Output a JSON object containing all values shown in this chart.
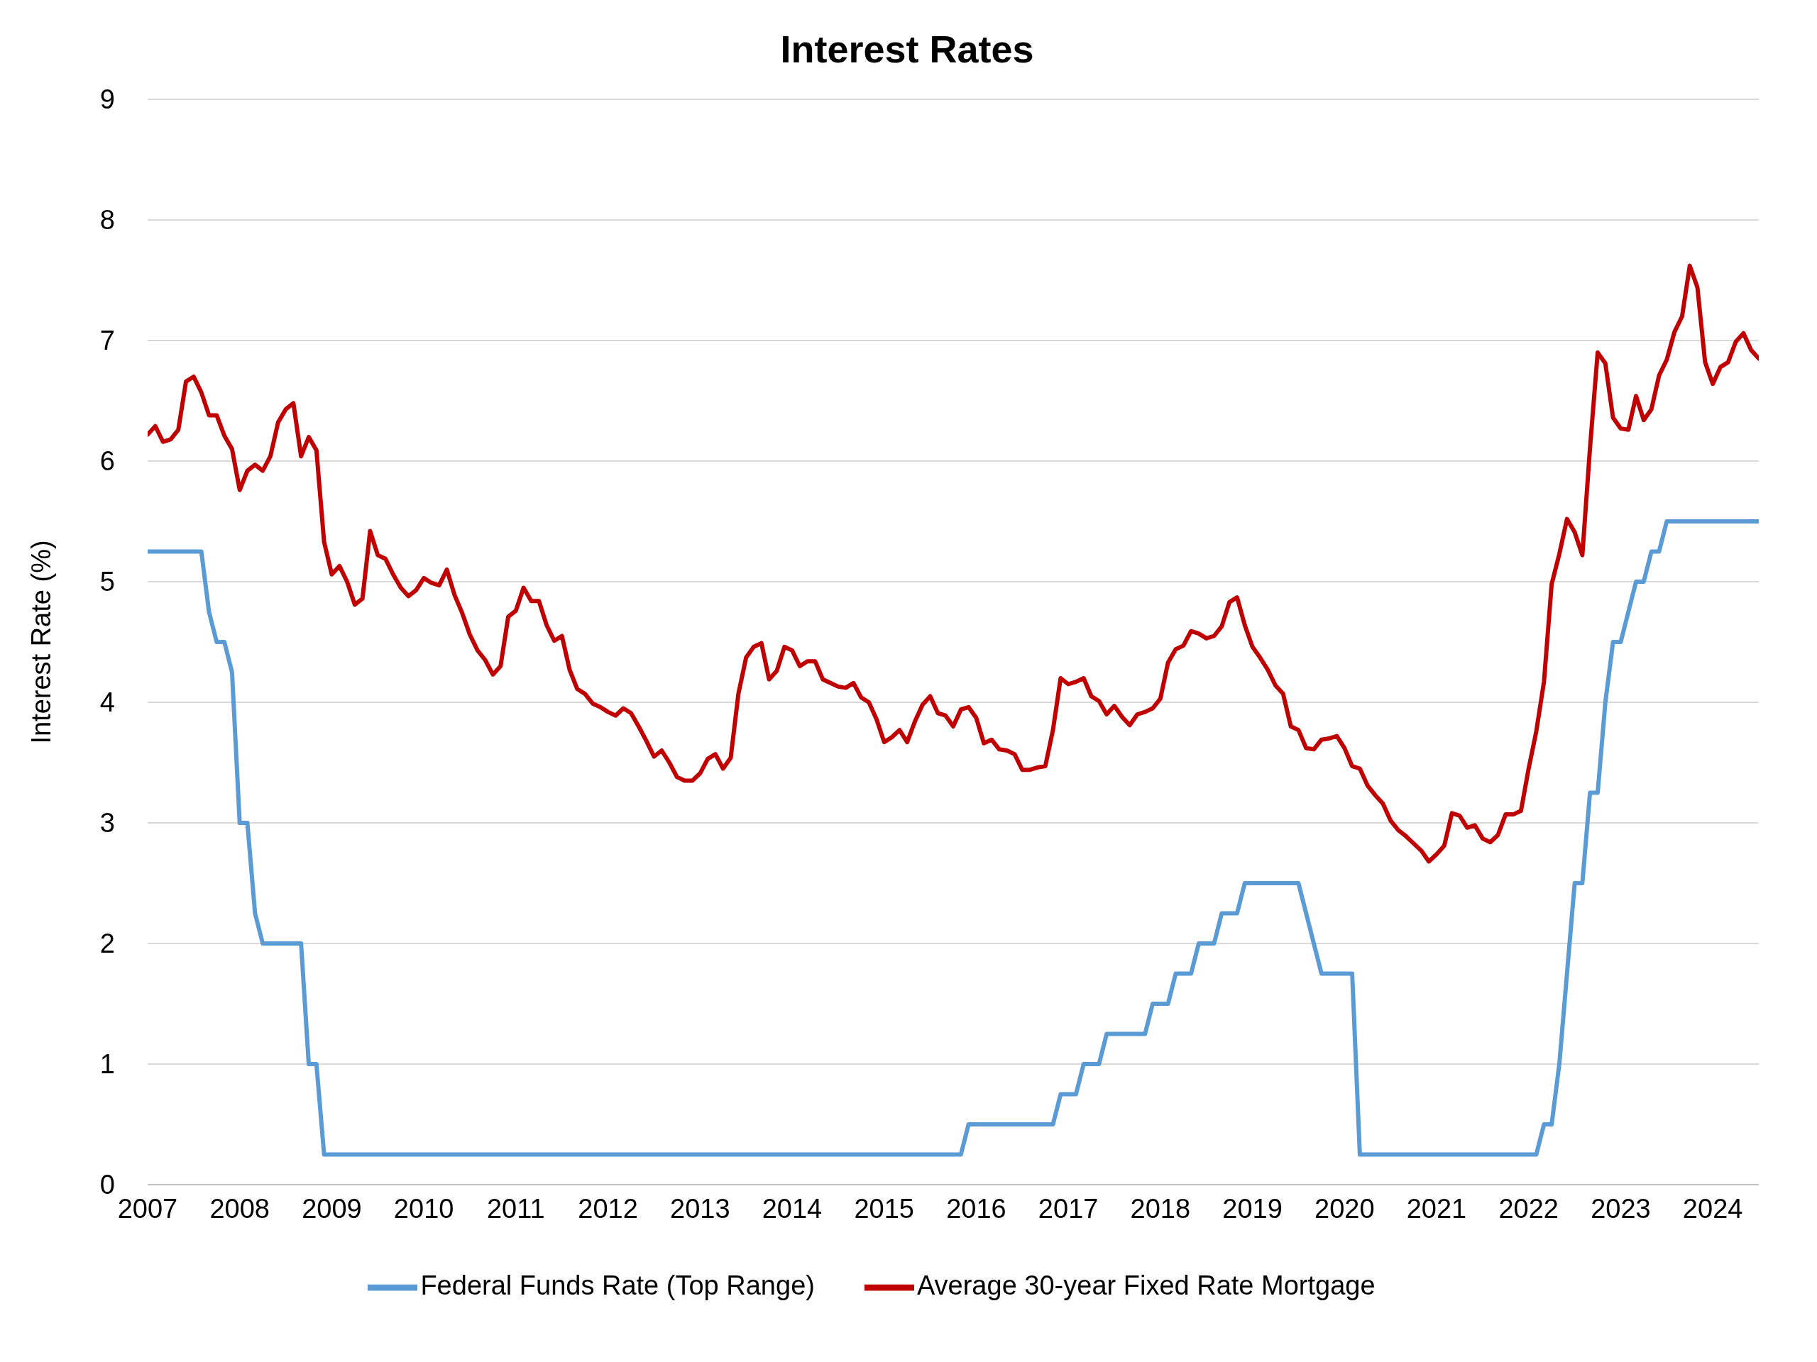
{
  "chart_data": {
    "type": "line",
    "title": "Interest Rates",
    "ylabel": "Interest Rate (%)",
    "x": [
      "2007-01",
      "2007-02",
      "2007-03",
      "2007-04",
      "2007-05",
      "2007-06",
      "2007-07",
      "2007-08",
      "2007-09",
      "2007-10",
      "2007-11",
      "2007-12",
      "2008-01",
      "2008-02",
      "2008-03",
      "2008-04",
      "2008-05",
      "2008-06",
      "2008-07",
      "2008-08",
      "2008-09",
      "2008-10",
      "2008-11",
      "2008-12",
      "2009-01",
      "2009-02",
      "2009-03",
      "2009-04",
      "2009-05",
      "2009-06",
      "2009-07",
      "2009-08",
      "2009-09",
      "2009-10",
      "2009-11",
      "2009-12",
      "2010-01",
      "2010-02",
      "2010-03",
      "2010-04",
      "2010-05",
      "2010-06",
      "2010-07",
      "2010-08",
      "2010-09",
      "2010-10",
      "2010-11",
      "2010-12",
      "2011-01",
      "2011-02",
      "2011-03",
      "2011-04",
      "2011-05",
      "2011-06",
      "2011-07",
      "2011-08",
      "2011-09",
      "2011-10",
      "2011-11",
      "2011-12",
      "2012-01",
      "2012-02",
      "2012-03",
      "2012-04",
      "2012-05",
      "2012-06",
      "2012-07",
      "2012-08",
      "2012-09",
      "2012-10",
      "2012-11",
      "2012-12",
      "2013-01",
      "2013-02",
      "2013-03",
      "2013-04",
      "2013-05",
      "2013-06",
      "2013-07",
      "2013-08",
      "2013-09",
      "2013-10",
      "2013-11",
      "2013-12",
      "2014-01",
      "2014-02",
      "2014-03",
      "2014-04",
      "2014-05",
      "2014-06",
      "2014-07",
      "2014-08",
      "2014-09",
      "2014-10",
      "2014-11",
      "2014-12",
      "2015-01",
      "2015-02",
      "2015-03",
      "2015-04",
      "2015-05",
      "2015-06",
      "2015-07",
      "2015-08",
      "2015-09",
      "2015-10",
      "2015-11",
      "2015-12",
      "2016-01",
      "2016-02",
      "2016-03",
      "2016-04",
      "2016-05",
      "2016-06",
      "2016-07",
      "2016-08",
      "2016-09",
      "2016-10",
      "2016-11",
      "2016-12",
      "2017-01",
      "2017-02",
      "2017-03",
      "2017-04",
      "2017-05",
      "2017-06",
      "2017-07",
      "2017-08",
      "2017-09",
      "2017-10",
      "2017-11",
      "2017-12",
      "2018-01",
      "2018-02",
      "2018-03",
      "2018-04",
      "2018-05",
      "2018-06",
      "2018-07",
      "2018-08",
      "2018-09",
      "2018-10",
      "2018-11",
      "2018-12",
      "2019-01",
      "2019-02",
      "2019-03",
      "2019-04",
      "2019-05",
      "2019-06",
      "2019-07",
      "2019-08",
      "2019-09",
      "2019-10",
      "2019-11",
      "2019-12",
      "2020-01",
      "2020-02",
      "2020-03",
      "2020-04",
      "2020-05",
      "2020-06",
      "2020-07",
      "2020-08",
      "2020-09",
      "2020-10",
      "2020-11",
      "2020-12",
      "2021-01",
      "2021-02",
      "2021-03",
      "2021-04",
      "2021-05",
      "2021-06",
      "2021-07",
      "2021-08",
      "2021-09",
      "2021-10",
      "2021-11",
      "2021-12",
      "2022-01",
      "2022-02",
      "2022-03",
      "2022-04",
      "2022-05",
      "2022-06",
      "2022-07",
      "2022-08",
      "2022-09",
      "2022-10",
      "2022-11",
      "2022-12",
      "2023-01",
      "2023-02",
      "2023-03",
      "2023-04",
      "2023-05",
      "2023-06",
      "2023-07",
      "2023-08",
      "2023-09",
      "2023-10",
      "2023-11",
      "2023-12",
      "2024-01",
      "2024-02",
      "2024-03",
      "2024-04",
      "2024-05",
      "2024-06",
      "2024-07"
    ],
    "series": [
      {
        "name": "Federal Funds Rate (Top Range)",
        "color": "#5b9bd5",
        "values": [
          5.25,
          5.25,
          5.25,
          5.25,
          5.25,
          5.25,
          5.25,
          5.25,
          4.75,
          4.5,
          4.5,
          4.25,
          3.0,
          3.0,
          2.25,
          2.0,
          2.0,
          2.0,
          2.0,
          2.0,
          2.0,
          1.0,
          1.0,
          0.25,
          0.25,
          0.25,
          0.25,
          0.25,
          0.25,
          0.25,
          0.25,
          0.25,
          0.25,
          0.25,
          0.25,
          0.25,
          0.25,
          0.25,
          0.25,
          0.25,
          0.25,
          0.25,
          0.25,
          0.25,
          0.25,
          0.25,
          0.25,
          0.25,
          0.25,
          0.25,
          0.25,
          0.25,
          0.25,
          0.25,
          0.25,
          0.25,
          0.25,
          0.25,
          0.25,
          0.25,
          0.25,
          0.25,
          0.25,
          0.25,
          0.25,
          0.25,
          0.25,
          0.25,
          0.25,
          0.25,
          0.25,
          0.25,
          0.25,
          0.25,
          0.25,
          0.25,
          0.25,
          0.25,
          0.25,
          0.25,
          0.25,
          0.25,
          0.25,
          0.25,
          0.25,
          0.25,
          0.25,
          0.25,
          0.25,
          0.25,
          0.25,
          0.25,
          0.25,
          0.25,
          0.25,
          0.25,
          0.25,
          0.25,
          0.25,
          0.25,
          0.25,
          0.25,
          0.25,
          0.25,
          0.25,
          0.25,
          0.25,
          0.5,
          0.5,
          0.5,
          0.5,
          0.5,
          0.5,
          0.5,
          0.5,
          0.5,
          0.5,
          0.5,
          0.5,
          0.75,
          0.75,
          0.75,
          1.0,
          1.0,
          1.0,
          1.25,
          1.25,
          1.25,
          1.25,
          1.25,
          1.25,
          1.5,
          1.5,
          1.5,
          1.75,
          1.75,
          1.75,
          2.0,
          2.0,
          2.0,
          2.25,
          2.25,
          2.25,
          2.5,
          2.5,
          2.5,
          2.5,
          2.5,
          2.5,
          2.5,
          2.5,
          2.25,
          2.0,
          1.75,
          1.75,
          1.75,
          1.75,
          1.75,
          0.25,
          0.25,
          0.25,
          0.25,
          0.25,
          0.25,
          0.25,
          0.25,
          0.25,
          0.25,
          0.25,
          0.25,
          0.25,
          0.25,
          0.25,
          0.25,
          0.25,
          0.25,
          0.25,
          0.25,
          0.25,
          0.25,
          0.25,
          0.25,
          0.5,
          0.5,
          1.0,
          1.75,
          2.5,
          2.5,
          3.25,
          3.25,
          4.0,
          4.5,
          4.5,
          4.75,
          5.0,
          5.0,
          5.25,
          5.25,
          5.5,
          5.5,
          5.5,
          5.5,
          5.5,
          5.5,
          5.5,
          5.5,
          5.5,
          5.5,
          5.5,
          5.5,
          5.5
        ]
      },
      {
        "name": "Average 30-year Fixed Rate Mortgage",
        "color": "#c00000",
        "values": [
          6.22,
          6.29,
          6.16,
          6.18,
          6.26,
          6.66,
          6.7,
          6.57,
          6.38,
          6.38,
          6.21,
          6.1,
          5.76,
          5.92,
          5.97,
          5.92,
          6.04,
          6.32,
          6.43,
          6.48,
          6.04,
          6.2,
          6.09,
          5.33,
          5.06,
          5.13,
          5.0,
          4.81,
          4.86,
          5.42,
          5.22,
          5.19,
          5.06,
          4.95,
          4.88,
          4.93,
          5.03,
          4.99,
          4.97,
          5.1,
          4.89,
          4.74,
          4.56,
          4.43,
          4.35,
          4.23,
          4.3,
          4.71,
          4.76,
          4.95,
          4.84,
          4.84,
          4.64,
          4.51,
          4.55,
          4.27,
          4.11,
          4.07,
          3.99,
          3.96,
          3.92,
          3.89,
          3.95,
          3.91,
          3.8,
          3.68,
          3.55,
          3.6,
          3.5,
          3.38,
          3.35,
          3.35,
          3.41,
          3.53,
          3.57,
          3.45,
          3.54,
          4.07,
          4.37,
          4.46,
          4.49,
          4.19,
          4.26,
          4.46,
          4.43,
          4.3,
          4.34,
          4.34,
          4.19,
          4.16,
          4.13,
          4.12,
          4.16,
          4.04,
          4.0,
          3.86,
          3.67,
          3.71,
          3.77,
          3.67,
          3.84,
          3.98,
          4.05,
          3.91,
          3.89,
          3.8,
          3.94,
          3.96,
          3.87,
          3.66,
          3.69,
          3.61,
          3.6,
          3.57,
          3.44,
          3.44,
          3.46,
          3.47,
          3.77,
          4.2,
          4.15,
          4.17,
          4.2,
          4.05,
          4.01,
          3.9,
          3.97,
          3.88,
          3.81,
          3.9,
          3.92,
          3.95,
          4.03,
          4.33,
          4.44,
          4.47,
          4.59,
          4.57,
          4.53,
          4.55,
          4.63,
          4.83,
          4.87,
          4.64,
          4.46,
          4.37,
          4.27,
          4.14,
          4.07,
          3.8,
          3.77,
          3.62,
          3.61,
          3.69,
          3.7,
          3.72,
          3.62,
          3.47,
          3.45,
          3.31,
          3.23,
          3.16,
          3.02,
          2.94,
          2.89,
          2.83,
          2.77,
          2.68,
          2.74,
          2.81,
          3.08,
          3.06,
          2.96,
          2.98,
          2.87,
          2.84,
          2.9,
          3.07,
          3.07,
          3.1,
          3.45,
          3.76,
          4.17,
          4.98,
          5.23,
          5.52,
          5.41,
          5.22,
          6.11,
          6.9,
          6.81,
          6.36,
          6.27,
          6.26,
          6.54,
          6.34,
          6.43,
          6.71,
          6.84,
          7.07,
          7.2,
          7.62,
          7.44,
          6.82,
          6.64,
          6.78,
          6.82,
          6.99,
          7.06,
          6.92,
          6.85
        ]
      }
    ],
    "xlim": [
      "2007-01",
      "2024-07"
    ],
    "xticks": [
      "2007",
      "2008",
      "2009",
      "2010",
      "2011",
      "2012",
      "2013",
      "2014",
      "2015",
      "2016",
      "2017",
      "2018",
      "2019",
      "2020",
      "2021",
      "2022",
      "2023",
      "2024"
    ],
    "ylim": [
      0,
      9
    ],
    "yticks": [
      0,
      1,
      2,
      3,
      4,
      5,
      6,
      7,
      8,
      9
    ],
    "grid": "y",
    "legend": "bottom",
    "marker": "none",
    "line_style": "solid"
  }
}
